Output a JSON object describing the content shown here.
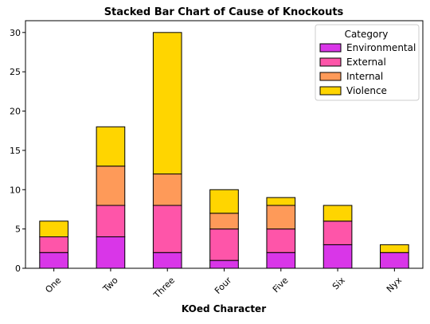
{
  "chart_data": {
    "type": "bar",
    "stacked": true,
    "title": "Stacked Bar Chart of Cause of Knockouts",
    "xlabel": "KOed Character",
    "ylabel": "",
    "categories": [
      "One",
      "Two",
      "Three",
      "Four",
      "Five",
      "Six",
      "Nyx"
    ],
    "series": [
      {
        "name": "Environmental",
        "color": "#d936e8",
        "values": [
          2,
          4,
          2,
          1,
          2,
          3,
          2
        ]
      },
      {
        "name": "External",
        "color": "#fe55a9",
        "values": [
          2,
          4,
          6,
          4,
          3,
          3,
          0
        ]
      },
      {
        "name": "Internal",
        "color": "#fe9a59",
        "values": [
          0,
          5,
          4,
          2,
          3,
          0,
          0
        ]
      },
      {
        "name": "Violence",
        "color": "#ffd500",
        "values": [
          2,
          5,
          18,
          3,
          1,
          2,
          1
        ]
      }
    ],
    "ylim": [
      0,
      31.5
    ],
    "yticks": [
      0,
      5,
      10,
      15,
      20,
      25,
      30
    ],
    "grid": false,
    "legend": {
      "title": "Category",
      "position": "top-right"
    }
  }
}
